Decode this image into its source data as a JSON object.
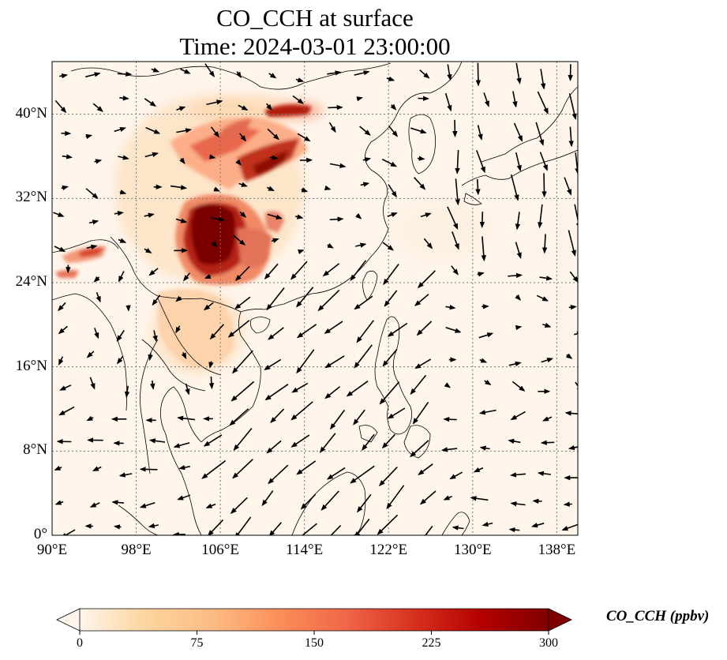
{
  "title": {
    "line1": "CO_CCH at surface",
    "line2": "Time: 2024-03-01 23:00:00"
  },
  "map": {
    "lon_range": [
      90,
      140
    ],
    "lat_range": [
      0,
      45
    ],
    "lat_ticks": [
      {
        "value": 0,
        "label": "0°"
      },
      {
        "value": 8,
        "label": "8°N"
      },
      {
        "value": 16,
        "label": "16°N"
      },
      {
        "value": 24,
        "label": "24°N"
      },
      {
        "value": 32,
        "label": "32°N"
      },
      {
        "value": 40,
        "label": "40°N"
      }
    ],
    "lon_ticks": [
      {
        "value": 90,
        "label": "90°E"
      },
      {
        "value": 98,
        "label": "98°E"
      },
      {
        "value": 106,
        "label": "106°E"
      },
      {
        "value": 114,
        "label": "114°E"
      },
      {
        "value": 122,
        "label": "122°E"
      },
      {
        "value": 130,
        "label": "130°E"
      },
      {
        "value": 138,
        "label": "138°E"
      }
    ],
    "gridlines": true,
    "field_color_low": "#fff5eb",
    "field_color_high": "#7f0000"
  },
  "colorbar": {
    "label": "CO_CCH (ppbv)",
    "min": 0,
    "max": 300,
    "extend": "both",
    "ticks": [
      {
        "value": 0,
        "label": "0"
      },
      {
        "value": 75,
        "label": "75"
      },
      {
        "value": 150,
        "label": "150"
      },
      {
        "value": 225,
        "label": "225"
      },
      {
        "value": 300,
        "label": "300"
      }
    ],
    "colormap": [
      "#fff5eb",
      "#fdd49e",
      "#fdbb84",
      "#fc8d59",
      "#ef6548",
      "#d7301f",
      "#b30000",
      "#7f0000"
    ]
  }
}
